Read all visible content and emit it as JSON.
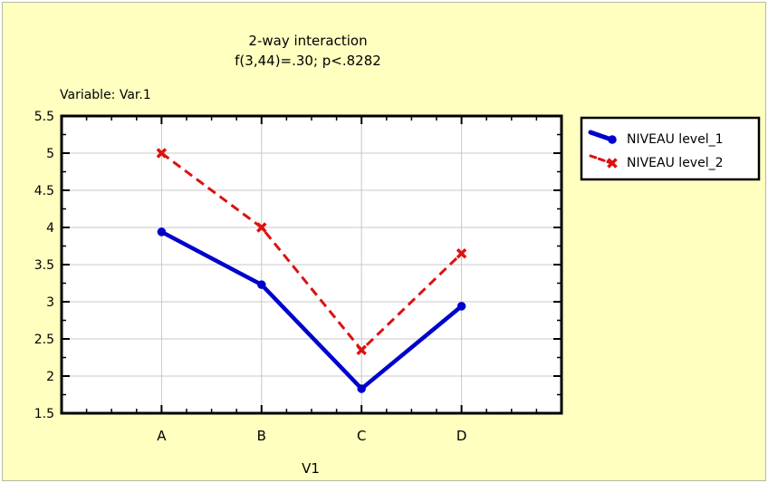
{
  "chart_data": {
    "type": "line",
    "title": "2-way interaction",
    "subtitle": "f(3,44)=.30; p<.8282",
    "variable_label": "Variable:  Var.1",
    "xlabel": "V1",
    "ylabel": "",
    "categories": [
      "A",
      "B",
      "C",
      "D"
    ],
    "ylim": [
      1.5,
      5.5
    ],
    "yticks": [
      "1.5",
      "2",
      "2.5",
      "3",
      "3.5",
      "4",
      "4.5",
      "5",
      "5.5"
    ],
    "grid": true,
    "legend_position": "right",
    "series": [
      {
        "name": "NIVEAU level_1",
        "values": [
          3.94,
          3.23,
          1.83,
          2.94
        ],
        "color": "#0000cc",
        "marker": "circle",
        "line": "solid"
      },
      {
        "name": "NIVEAU level_2",
        "values": [
          5.0,
          4.0,
          2.35,
          3.65
        ],
        "color": "#dd1111",
        "marker": "x",
        "line": "dashed"
      }
    ]
  }
}
